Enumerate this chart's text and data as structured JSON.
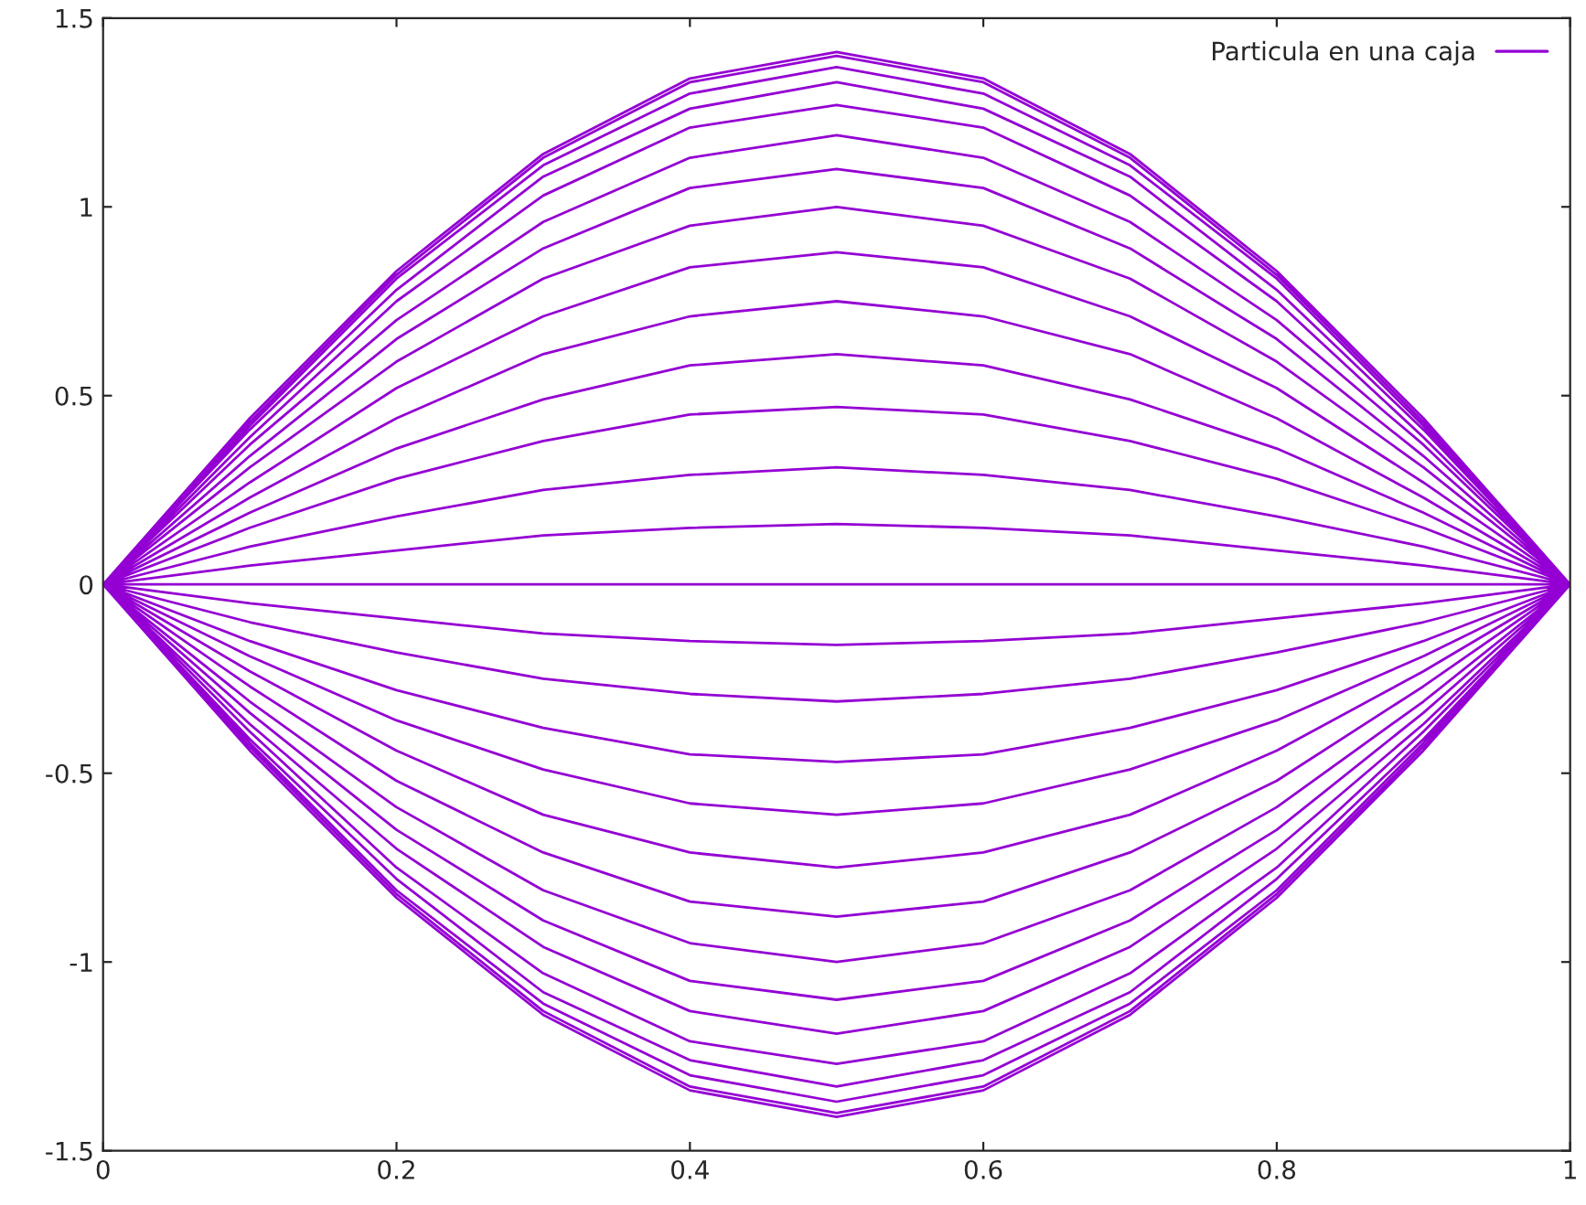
{
  "chart_data": {
    "type": "line",
    "xlim": [
      0,
      1
    ],
    "xticks": [
      0,
      0.2,
      0.4,
      0.6,
      0.8,
      1
    ],
    "ylim": [
      -1.5,
      1.5
    ],
    "yticks": [
      {
        "value": -1.5,
        "label": "-1.5"
      },
      {
        "value": -1,
        "label": "-1"
      },
      {
        "value": -0.5,
        "label": "-0.5"
      },
      0,
      0.5,
      1,
      1.5
    ],
    "grid": false,
    "legend": "top right",
    "marker": "none",
    "line_style": "solid",
    "series": [
      {
        "name": "Particula en una caja",
        "color": "#9400d3",
        "x": [
          0,
          0.1,
          0.2,
          0.3,
          0.4,
          0.5,
          0.6,
          0.7,
          0.8,
          0.9,
          1,
          null,
          0,
          0.1,
          0.2,
          0.3,
          0.4,
          0.5,
          0.6,
          0.7,
          0.8,
          0.9,
          1,
          null,
          0,
          0.1,
          0.2,
          0.3,
          0.4,
          0.5,
          0.6,
          0.7,
          0.8,
          0.9,
          1,
          null,
          0,
          0.1,
          0.2,
          0.3,
          0.4,
          0.5,
          0.6,
          0.7,
          0.8,
          0.9,
          1,
          null,
          0,
          0.1,
          0.2,
          0.3,
          0.4,
          0.5,
          0.6,
          0.7,
          0.8,
          0.9,
          1,
          null,
          0,
          0.1,
          0.2,
          0.3,
          0.4,
          0.5,
          0.6,
          0.7,
          0.8,
          0.9,
          1,
          null,
          0,
          0.1,
          0.2,
          0.3,
          0.4,
          0.5,
          0.6,
          0.7,
          0.8,
          0.9,
          1,
          null,
          0,
          0.1,
          0.2,
          0.3,
          0.4,
          0.5,
          0.6,
          0.7,
          0.8,
          0.9,
          1,
          null,
          0,
          0.1,
          0.2,
          0.3,
          0.4,
          0.5,
          0.6,
          0.7,
          0.8,
          0.9,
          1,
          null,
          0,
          0.1,
          0.2,
          0.3,
          0.4,
          0.5,
          0.6,
          0.7,
          0.8,
          0.9,
          1,
          null,
          0,
          0.1,
          0.2,
          0.3,
          0.4,
          0.5,
          0.6,
          0.7,
          0.8,
          0.9,
          1,
          null,
          0,
          0.1,
          0.2,
          0.3,
          0.4,
          0.5,
          0.6,
          0.7,
          0.8,
          0.9,
          1,
          null,
          0,
          0.1,
          0.2,
          0.3,
          0.4,
          0.5,
          0.6,
          0.7,
          0.8,
          0.9,
          1,
          null,
          0,
          0.1,
          0.2,
          0.3,
          0.4,
          0.5,
          0.6,
          0.7,
          0.8,
          0.9,
          1,
          null,
          0,
          0.1,
          0.2,
          0.3,
          0.4,
          0.5,
          0.6,
          0.7,
          0.8,
          0.9,
          1,
          null,
          0,
          0.1,
          0.2,
          0.3,
          0.4,
          0.5,
          0.6,
          0.7,
          0.8,
          0.9,
          1,
          null,
          0,
          0.1,
          0.2,
          0.3,
          0.4,
          0.5,
          0.6,
          0.7,
          0.8,
          0.9,
          1,
          null,
          0,
          0.1,
          0.2,
          0.3,
          0.4,
          0.5,
          0.6,
          0.7,
          0.8,
          0.9,
          1,
          null,
          0,
          0.1,
          0.2,
          0.3,
          0.4,
          0.5,
          0.6,
          0.7,
          0.8,
          0.9,
          1,
          null,
          0,
          0.1,
          0.2,
          0.3,
          0.4,
          0.5,
          0.6,
          0.7,
          0.8,
          0.9,
          1,
          null,
          0,
          0.1,
          0.2,
          0.3,
          0.4,
          0.5,
          0.6,
          0.7,
          0.8,
          0.9,
          1,
          null,
          0,
          0.1,
          0.2,
          0.3,
          0.4,
          0.5,
          0.6,
          0.7,
          0.8,
          0.9,
          1,
          null,
          0,
          0.1,
          0.2,
          0.3,
          0.4,
          0.5,
          0.6,
          0.7,
          0.8,
          0.9,
          1,
          null,
          0,
          0.1,
          0.2,
          0.3,
          0.4,
          0.5,
          0.6,
          0.7,
          0.8,
          0.9,
          1,
          null,
          0,
          0.1,
          0.2,
          0.3,
          0.4,
          0.5,
          0.6,
          0.7,
          0.8,
          0.9,
          1,
          null,
          0,
          0.1,
          0.2,
          0.3,
          0.4,
          0.5,
          0.6,
          0.7,
          0.8,
          0.9,
          1,
          null,
          0,
          0.1,
          0.2,
          0.3,
          0.4,
          0.5,
          0.6,
          0.7,
          0.8,
          0.9,
          1,
          null,
          0,
          0.1,
          0.2,
          0.3,
          0.4,
          0.5,
          0.6,
          0.7,
          0.8,
          0.9,
          1,
          null,
          0,
          0.1,
          0.2,
          0.3,
          0.4,
          0.5,
          0.6,
          0.7,
          0.8,
          0.9,
          1
        ],
        "values": [
          0,
          0.44,
          0.83,
          1.14,
          1.34,
          1.41,
          1.34,
          1.14,
          0.83,
          0.44,
          0,
          null,
          0,
          0.43,
          0.82,
          1.13,
          1.33,
          1.4,
          1.33,
          1.13,
          0.82,
          0.43,
          0,
          null,
          0,
          0.42,
          0.81,
          1.11,
          1.3,
          1.37,
          1.3,
          1.11,
          0.81,
          0.42,
          0,
          null,
          0,
          0.41,
          0.78,
          1.08,
          1.26,
          1.33,
          1.26,
          1.08,
          0.78,
          0.41,
          0,
          null,
          0,
          0.39,
          0.75,
          1.03,
          1.21,
          1.27,
          1.21,
          1.03,
          0.75,
          0.39,
          0,
          null,
          0,
          0.37,
          0.7,
          0.96,
          1.13,
          1.19,
          1.13,
          0.96,
          0.7,
          0.37,
          0,
          null,
          0,
          0.34,
          0.65,
          0.89,
          1.05,
          1.1,
          1.05,
          0.89,
          0.65,
          0.34,
          0,
          null,
          0,
          0.31,
          0.59,
          0.81,
          0.95,
          1.0,
          0.95,
          0.81,
          0.59,
          0.31,
          0,
          null,
          0,
          0.27,
          0.52,
          0.71,
          0.84,
          0.88,
          0.84,
          0.71,
          0.52,
          0.27,
          0,
          null,
          0,
          0.23,
          0.44,
          0.61,
          0.71,
          0.75,
          0.71,
          0.61,
          0.44,
          0.23,
          0,
          null,
          0,
          0.19,
          0.36,
          0.49,
          0.58,
          0.61,
          0.58,
          0.49,
          0.36,
          0.19,
          0,
          null,
          0,
          0.15,
          0.28,
          0.38,
          0.45,
          0.47,
          0.45,
          0.38,
          0.28,
          0.15,
          0,
          null,
          0,
          0.1,
          0.18,
          0.25,
          0.29,
          0.31,
          0.29,
          0.25,
          0.18,
          0.1,
          0,
          null,
          0,
          0.05,
          0.09,
          0.13,
          0.15,
          0.16,
          0.15,
          0.13,
          0.09,
          0.05,
          0,
          null,
          0,
          0,
          0,
          0,
          0,
          0,
          0,
          0,
          0,
          0,
          0,
          null,
          0,
          -0.05,
          -0.09,
          -0.13,
          -0.15,
          -0.16,
          -0.15,
          -0.13,
          -0.09,
          -0.05,
          0,
          null,
          0,
          -0.1,
          -0.18,
          -0.25,
          -0.29,
          -0.31,
          -0.29,
          -0.25,
          -0.18,
          -0.1,
          0,
          null,
          0,
          -0.15,
          -0.28,
          -0.38,
          -0.45,
          -0.47,
          -0.45,
          -0.38,
          -0.28,
          -0.15,
          0,
          null,
          0,
          -0.19,
          -0.36,
          -0.49,
          -0.58,
          -0.61,
          -0.58,
          -0.49,
          -0.36,
          -0.19,
          0,
          null,
          0,
          -0.23,
          -0.44,
          -0.61,
          -0.71,
          -0.75,
          -0.71,
          -0.61,
          -0.44,
          -0.23,
          0,
          null,
          0,
          -0.27,
          -0.52,
          -0.71,
          -0.84,
          -0.88,
          -0.84,
          -0.71,
          -0.52,
          -0.27,
          0,
          null,
          0,
          -0.31,
          -0.59,
          -0.81,
          -0.95,
          -1.0,
          -0.95,
          -0.81,
          -0.59,
          -0.31,
          0,
          null,
          0,
          -0.34,
          -0.65,
          -0.89,
          -1.05,
          -1.1,
          -1.05,
          -0.89,
          -0.65,
          -0.34,
          0,
          null,
          0,
          -0.37,
          -0.7,
          -0.96,
          -1.13,
          -1.19,
          -1.13,
          -0.96,
          -0.7,
          -0.37,
          0,
          null,
          0,
          -0.39,
          -0.75,
          -1.03,
          -1.21,
          -1.27,
          -1.21,
          -1.03,
          -0.75,
          -0.39,
          0,
          null,
          0,
          -0.41,
          -0.78,
          -1.08,
          -1.26,
          -1.33,
          -1.26,
          -1.08,
          -0.78,
          -0.41,
          0,
          null,
          0,
          -0.42,
          -0.81,
          -1.11,
          -1.3,
          -1.37,
          -1.3,
          -1.11,
          -0.81,
          -0.42,
          0,
          null,
          0,
          -0.43,
          -0.82,
          -1.13,
          -1.33,
          -1.4,
          -1.33,
          -1.13,
          -0.82,
          -0.43,
          0,
          null,
          0,
          -0.44,
          -0.83,
          -1.14,
          -1.34,
          -1.41,
          -1.34,
          -1.14,
          -0.83,
          -0.44,
          0
        ]
      }
    ]
  }
}
